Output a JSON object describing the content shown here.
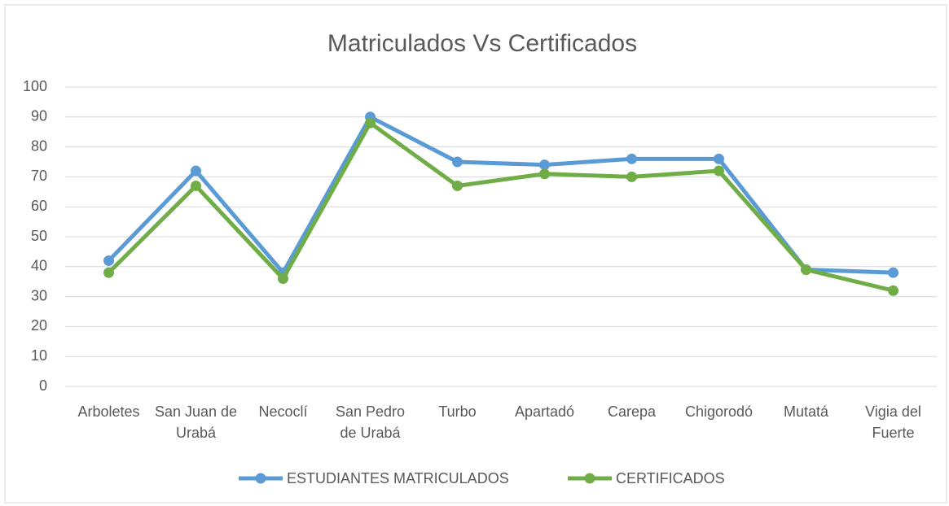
{
  "chart_data": {
    "type": "line",
    "title": "Matriculados Vs Certificados",
    "categories": [
      "Arboletes",
      "San Juan de Urabá",
      "Necoclí",
      "San Pedro de Urabá",
      "Turbo",
      "Apartadó",
      "Carepa",
      "Chigorodó",
      "Mutatá",
      "Vigia del Fuerte"
    ],
    "series": [
      {
        "name": "ESTUDIANTES MATRICULADOS",
        "color": "#5b9bd5",
        "values": [
          42,
          72,
          38,
          90,
          75,
          74,
          76,
          76,
          39,
          38
        ]
      },
      {
        "name": "CERTIFICADOS",
        "color": "#70ad47",
        "values": [
          38,
          67,
          36,
          88,
          67,
          71,
          70,
          72,
          39,
          32
        ]
      }
    ],
    "ylim": [
      0,
      100
    ],
    "yticks": [
      0,
      10,
      20,
      30,
      40,
      50,
      60,
      70,
      80,
      90,
      100
    ],
    "grid": true,
    "legend": "bottom"
  }
}
